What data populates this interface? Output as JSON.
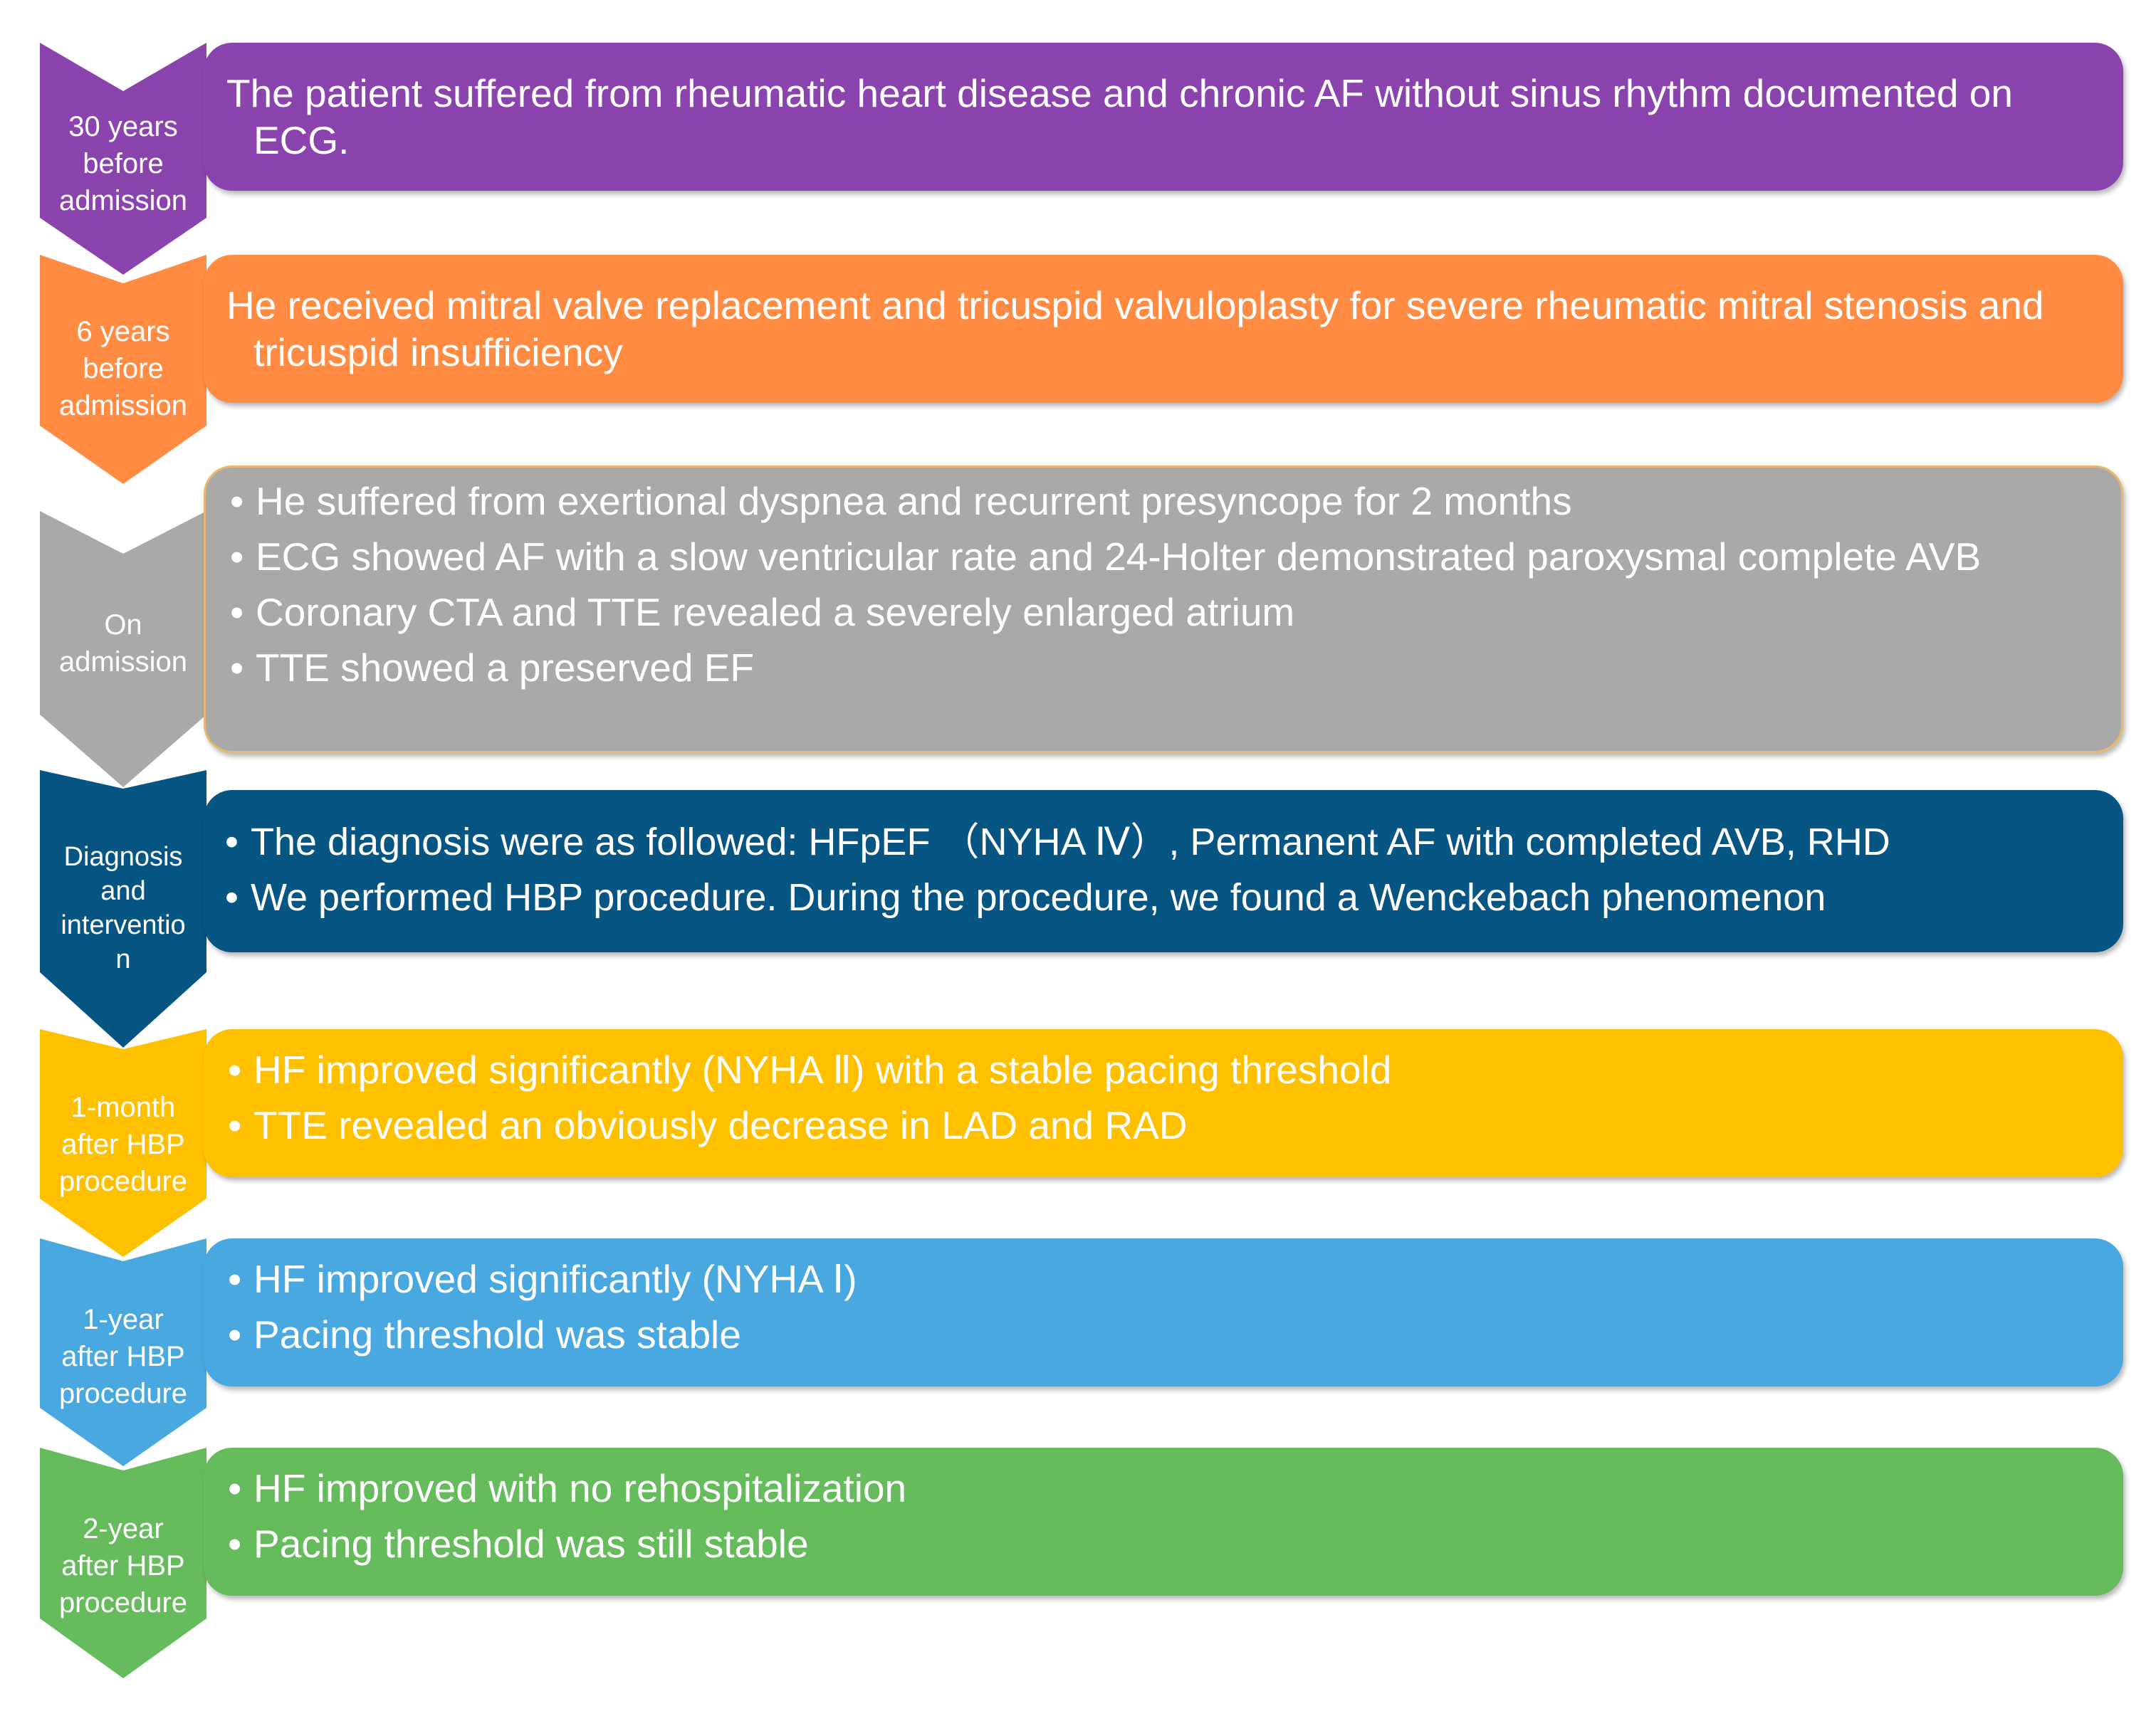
{
  "stages": [
    {
      "label": "30 years\nbefore\nadmission",
      "color": "#8b44ad",
      "text": "The patient suffered from rheumatic heart disease and chronic AF without sinus rhythm documented on ECG."
    },
    {
      "label": "6 years\nbefore\nadmission",
      "color": "#ff8c42",
      "text": "He received mitral valve replacement and tricuspid valvuloplasty for severe rheumatic mitral stenosis and tricuspid insufficiency"
    },
    {
      "label": "On\nadmission",
      "color": "#a9a9a9",
      "bullets": [
        "He suffered from exertional dyspnea and recurrent presyncope for 2 months",
        "ECG showed AF with a slow ventricular rate and 24-Holter demonstrated paroxysmal complete AVB",
        "Coronary CTA and TTE revealed a severely enlarged atrium",
        "TTE showed a preserved EF"
      ]
    },
    {
      "label": "Diagnosis\nand\ninterventio\nn",
      "color": "#075583",
      "bullets": [
        "The diagnosis were as followed: HFpEF （NYHA Ⅳ）, Permanent AF with completed AVB, RHD",
        "We performed HBP procedure. During the procedure, we found a Wenckebach phenomenon"
      ]
    },
    {
      "label": "1-month\nafter HBP\nprocedure",
      "color": "#ffc000",
      "bullets": [
        "HF improved significantly (NYHA Ⅱ) with a stable pacing threshold",
        "TTE revealed an obviously decrease in LAD and RAD"
      ]
    },
    {
      "label": "1-year\nafter HBP\nprocedure",
      "color": "#4aa8e0",
      "bullets": [
        "HF improved significantly (NYHA Ⅰ)",
        "Pacing threshold was stable"
      ]
    },
    {
      "label": "2-year\nafter HBP\nprocedure",
      "color": "#66bb5c",
      "bullets": [
        "HF improved with no rehospitalization",
        "Pacing threshold was still stable"
      ]
    }
  ]
}
